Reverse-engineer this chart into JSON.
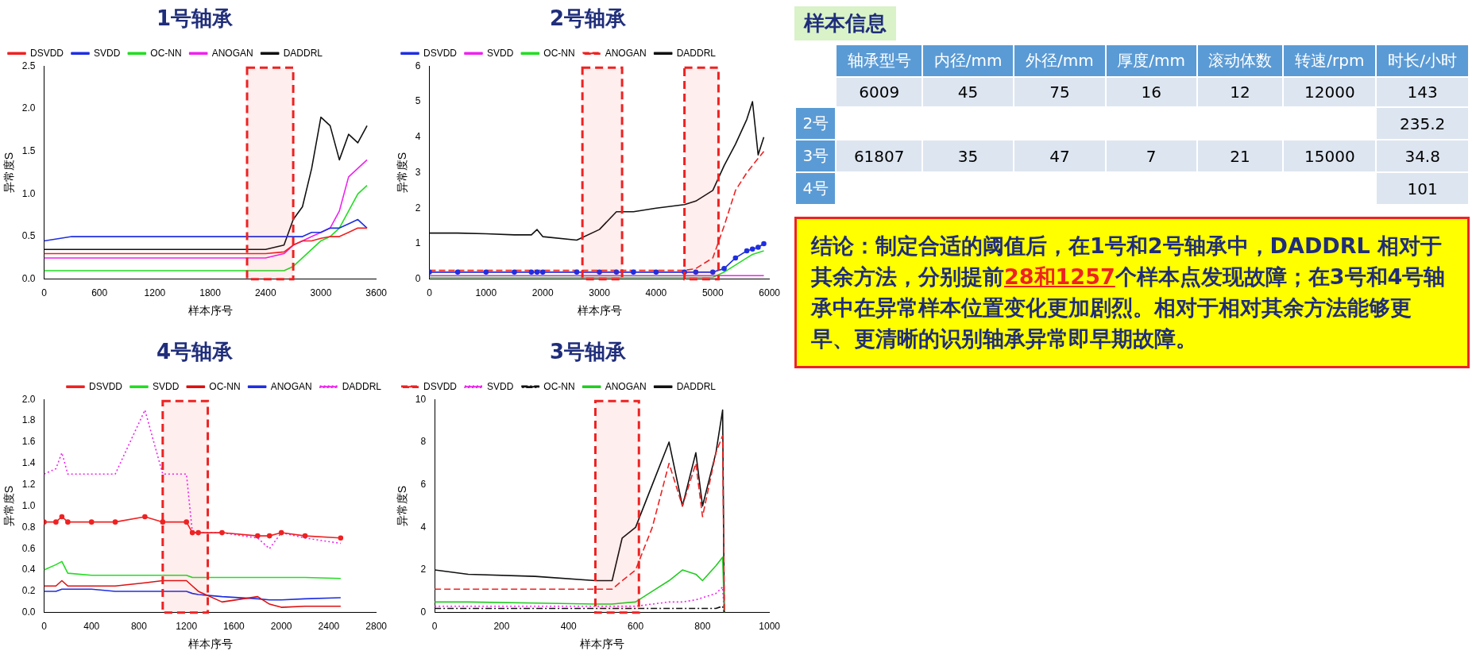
{
  "chart_data": [
    {
      "type": "line",
      "title": "1号轴承",
      "xlabel": "样本序号",
      "ylabel": "异常度S",
      "legend": "top left",
      "grid": false,
      "x": [
        0,
        300,
        600,
        900,
        1200,
        1500,
        1800,
        2100,
        2400,
        2600,
        2700,
        2800,
        2900,
        3000,
        3100,
        3200,
        3300,
        3400,
        3500
      ],
      "xlim": [
        0,
        3600
      ],
      "xticks": [
        0,
        600,
        1200,
        1800,
        2400,
        3000,
        3600
      ],
      "ylim": [
        0,
        2.5
      ],
      "yticks": [
        {
          "value": 0,
          "label": "0.0"
        },
        {
          "value": 0.5,
          "label": "0.5"
        },
        {
          "value": 1,
          "label": "1.0"
        },
        {
          "value": 1.5,
          "label": "1.5"
        },
        {
          "value": 2,
          "label": "2.0"
        },
        {
          "value": 2.5,
          "label": "2.5"
        }
      ],
      "bands": [
        {
          "axis": "x",
          "from": 2200,
          "to": 2700,
          "color": "#ee2222"
        }
      ],
      "series": [
        {
          "name": "DSVDD",
          "color": "#ee2222",
          "values": [
            0.3,
            0.3,
            0.3,
            0.3,
            0.3,
            0.3,
            0.3,
            0.3,
            0.3,
            0.32,
            0.4,
            0.45,
            0.45,
            0.48,
            0.5,
            0.5,
            0.55,
            0.6,
            0.6
          ]
        },
        {
          "name": "SVDD",
          "color": "#1f2fe0",
          "values": [
            0.45,
            0.5,
            0.5,
            0.5,
            0.5,
            0.5,
            0.5,
            0.5,
            0.5,
            0.5,
            0.5,
            0.5,
            0.55,
            0.55,
            0.6,
            0.6,
            0.65,
            0.7,
            0.6
          ]
        },
        {
          "name": "OC-NN",
          "color": "#22dd22",
          "values": [
            0.1,
            0.1,
            0.1,
            0.1,
            0.1,
            0.1,
            0.1,
            0.1,
            0.1,
            0.1,
            0.15,
            0.25,
            0.35,
            0.45,
            0.5,
            0.6,
            0.8,
            1.0,
            1.1
          ]
        },
        {
          "name": "ANOGAN",
          "color": "#ee22ee",
          "values": [
            0.25,
            0.25,
            0.25,
            0.25,
            0.25,
            0.25,
            0.25,
            0.25,
            0.25,
            0.3,
            0.4,
            0.45,
            0.5,
            0.55,
            0.6,
            0.8,
            1.2,
            1.3,
            1.4
          ]
        },
        {
          "name": "DADDRL",
          "color": "#111111",
          "values": [
            0.35,
            0.35,
            0.35,
            0.35,
            0.35,
            0.35,
            0.35,
            0.35,
            0.35,
            0.4,
            0.7,
            0.85,
            1.3,
            1.9,
            1.8,
            1.4,
            1.7,
            1.6,
            1.8
          ]
        }
      ]
    },
    {
      "type": "line",
      "title": "2号轴承",
      "xlabel": "样本序号",
      "ylabel": "异常度S",
      "legend": "top left",
      "grid": false,
      "x": [
        0,
        500,
        1000,
        1500,
        1800,
        1900,
        2000,
        2600,
        3000,
        3300,
        3600,
        4000,
        4500,
        4700,
        5000,
        5200,
        5400,
        5600,
        5700,
        5800,
        5900
      ],
      "xlim": [
        0,
        6000
      ],
      "xticks": [
        0,
        1000,
        2000,
        3000,
        4000,
        5000,
        6000
      ],
      "ylim": [
        0,
        6
      ],
      "yticks": [
        0,
        1,
        2,
        3,
        4,
        5,
        6
      ],
      "bands": [
        {
          "axis": "x",
          "from": 2700,
          "to": 3400,
          "color": "#ee2222"
        },
        {
          "axis": "x",
          "from": 4500,
          "to": 5100,
          "color": "#ee2222"
        }
      ],
      "series": [
        {
          "name": "DSVDD",
          "color": "#1f2fe0",
          "marker": "circle",
          "values": [
            0.2,
            0.2,
            0.2,
            0.2,
            0.2,
            0.2,
            0.2,
            0.2,
            0.2,
            0.2,
            0.2,
            0.2,
            0.2,
            0.2,
            0.2,
            0.3,
            0.6,
            0.8,
            0.85,
            0.9,
            1.0
          ]
        },
        {
          "name": "SVDD",
          "color": "#ee22ee",
          "values": [
            0.1,
            0.1,
            0.1,
            0.1,
            0.1,
            0.1,
            0.1,
            0.1,
            0.1,
            0.1,
            0.1,
            0.1,
            0.1,
            0.1,
            0.1,
            0.1,
            0.1,
            0.1,
            0.1,
            0.1,
            0.1
          ]
        },
        {
          "name": "OC-NN",
          "color": "#22dd22",
          "values": [
            0.05,
            0.05,
            0.05,
            0.05,
            0.05,
            0.05,
            0.05,
            0.05,
            0.05,
            0.05,
            0.05,
            0.05,
            0.05,
            0.05,
            0.05,
            0.2,
            0.4,
            0.6,
            0.7,
            0.75,
            0.8
          ]
        },
        {
          "name": "ANOGAN",
          "color": "#ee2222",
          "line_style": "dashed",
          "values": [
            0.25,
            0.25,
            0.25,
            0.25,
            0.25,
            0.25,
            0.25,
            0.25,
            0.25,
            0.25,
            0.25,
            0.25,
            0.25,
            0.3,
            0.6,
            1.5,
            2.5,
            3.0,
            3.2,
            3.4,
            3.6
          ]
        },
        {
          "name": "DADDRL",
          "color": "#111111",
          "values": [
            1.3,
            1.3,
            1.28,
            1.25,
            1.25,
            1.4,
            1.2,
            1.1,
            1.4,
            1.9,
            1.9,
            2.0,
            2.1,
            2.2,
            2.5,
            3.2,
            3.8,
            4.5,
            5.0,
            3.5,
            4.0
          ]
        }
      ]
    },
    {
      "type": "line",
      "title": "4号轴承",
      "xlabel": "样本序号",
      "ylabel": "异常度S",
      "legend": "top right",
      "grid": false,
      "x": [
        0,
        100,
        150,
        200,
        400,
        600,
        850,
        1000,
        1200,
        1250,
        1300,
        1500,
        1800,
        1900,
        2000,
        2200,
        2500
      ],
      "xlim": [
        0,
        2800
      ],
      "xticks": [
        0,
        400,
        800,
        1200,
        1600,
        2000,
        2400,
        2800
      ],
      "ylim": [
        0,
        2
      ],
      "yticks": [
        {
          "value": 0,
          "label": "0.0"
        },
        {
          "value": 0.2,
          "label": "0.2"
        },
        {
          "value": 0.4,
          "label": "0.4"
        },
        {
          "value": 0.6,
          "label": "0.6"
        },
        {
          "value": 0.8,
          "label": "0.8"
        },
        {
          "value": 1,
          "label": "1.0"
        },
        {
          "value": 1.2,
          "label": "1.2"
        },
        {
          "value": 1.4,
          "label": "1.4"
        },
        {
          "value": 1.6,
          "label": "1.6"
        },
        {
          "value": 1.8,
          "label": "1.8"
        },
        {
          "value": 2,
          "label": "2.0"
        }
      ],
      "bands": [
        {
          "axis": "x",
          "from": 1000,
          "to": 1380,
          "color": "#ee2222"
        }
      ],
      "series": [
        {
          "name": "DSVDD",
          "color": "#ee2222",
          "marker": "circle",
          "values": [
            0.85,
            0.85,
            0.9,
            0.85,
            0.85,
            0.85,
            0.9,
            0.85,
            0.85,
            0.75,
            0.75,
            0.75,
            0.72,
            0.72,
            0.75,
            0.72,
            0.7
          ]
        },
        {
          "name": "SVDD",
          "color": "#22dd22",
          "values": [
            0.4,
            0.45,
            0.48,
            0.37,
            0.35,
            0.35,
            0.35,
            0.35,
            0.35,
            0.33,
            0.33,
            0.33,
            0.33,
            0.33,
            0.33,
            0.33,
            0.32
          ]
        },
        {
          "name": "OC-NN",
          "color": "#dd1111",
          "values": [
            0.25,
            0.25,
            0.3,
            0.25,
            0.25,
            0.25,
            0.28,
            0.3,
            0.3,
            0.25,
            0.2,
            0.1,
            0.15,
            0.08,
            0.05,
            0.06,
            0.06
          ]
        },
        {
          "name": "ANOGAN",
          "color": "#1f2fe0",
          "values": [
            0.2,
            0.2,
            0.22,
            0.22,
            0.22,
            0.2,
            0.2,
            0.2,
            0.2,
            0.18,
            0.17,
            0.15,
            0.13,
            0.12,
            0.12,
            0.13,
            0.14
          ]
        },
        {
          "name": "DADDRL",
          "color": "#ee22ee",
          "line_style": "dotted",
          "values": [
            1.3,
            1.35,
            1.5,
            1.3,
            1.3,
            1.3,
            1.9,
            1.3,
            1.3,
            0.75,
            0.75,
            0.75,
            0.7,
            0.6,
            0.75,
            0.7,
            0.65
          ]
        }
      ]
    },
    {
      "type": "line",
      "title": "3号轴承",
      "xlabel": "样本序号",
      "ylabel": "异常度S",
      "legend": "top left",
      "grid": false,
      "x": [
        0,
        100,
        300,
        480,
        530,
        560,
        600,
        650,
        700,
        740,
        780,
        800,
        840,
        860,
        865
      ],
      "xlim": [
        0,
        1000
      ],
      "xticks": [
        0,
        200,
        400,
        600,
        800,
        1000
      ],
      "ylim": [
        0,
        10
      ],
      "yticks": [
        0,
        2,
        4,
        6,
        8,
        10
      ],
      "bands": [
        {
          "axis": "x",
          "from": 480,
          "to": 610,
          "color": "#ee2222"
        }
      ],
      "series": [
        {
          "name": "DSVDD",
          "color": "#ee2222",
          "line_style": "dashed",
          "values": [
            1.1,
            1.1,
            1.1,
            1.1,
            1.1,
            1.5,
            2.0,
            4.0,
            7.0,
            5.0,
            7.0,
            4.5,
            7.5,
            8.3,
            0
          ]
        },
        {
          "name": "SVDD",
          "color": "#ee22ee",
          "line_style": "dotted",
          "values": [
            0.3,
            0.3,
            0.3,
            0.3,
            0.3,
            0.3,
            0.3,
            0.4,
            0.5,
            0.5,
            0.6,
            0.7,
            0.9,
            1.2,
            0
          ]
        },
        {
          "name": "OC-NN",
          "color": "#111111",
          "line_style": "dashdot",
          "values": [
            0.2,
            0.2,
            0.2,
            0.2,
            0.2,
            0.2,
            0.2,
            0.2,
            0.2,
            0.2,
            0.2,
            0.2,
            0.2,
            0.3,
            0
          ]
        },
        {
          "name": "ANOGAN",
          "color": "#22cc22",
          "values": [
            0.5,
            0.5,
            0.45,
            0.4,
            0.4,
            0.45,
            0.5,
            1.0,
            1.5,
            2.0,
            1.8,
            1.5,
            2.2,
            2.6,
            0
          ]
        },
        {
          "name": "DADDRL",
          "color": "#111111",
          "values": [
            2.0,
            1.8,
            1.7,
            1.5,
            1.5,
            3.5,
            4.0,
            6.0,
            8.0,
            5.0,
            7.5,
            5.0,
            7.5,
            9.5,
            0
          ]
        }
      ]
    },
    {
      "type": "other",
      "title": "样本信息",
      "categories": [
        "轴承型号",
        "内径/mm",
        "外径/mm",
        "厚度/mm",
        "滚动体数",
        "转速/rpm",
        "时长/小时"
      ],
      "y_categories": [
        null,
        "2号",
        "3号",
        "4号"
      ],
      "cell_labels": [
        [
          "6009",
          "45",
          "75",
          "16",
          "12",
          "12000",
          "143"
        ],
        [
          null,
          null,
          null,
          null,
          null,
          null,
          "235.2"
        ],
        [
          "61807",
          "35",
          "47",
          "7",
          "21",
          "15000",
          "34.8"
        ],
        [
          null,
          null,
          null,
          null,
          null,
          null,
          "101"
        ]
      ],
      "annotations": [
        "结论：制定合适的阈值后，在1号和2号轴承中，DADDRL 相对于其余方法，分别提前",
        "28和1257",
        "个样本点发现故障；在3号和4号轴承中在异常样本位置变化更加剧烈。相对于相对其余方法能够更早、更清晰的识别轴承异常即早期故障。"
      ]
    }
  ]
}
